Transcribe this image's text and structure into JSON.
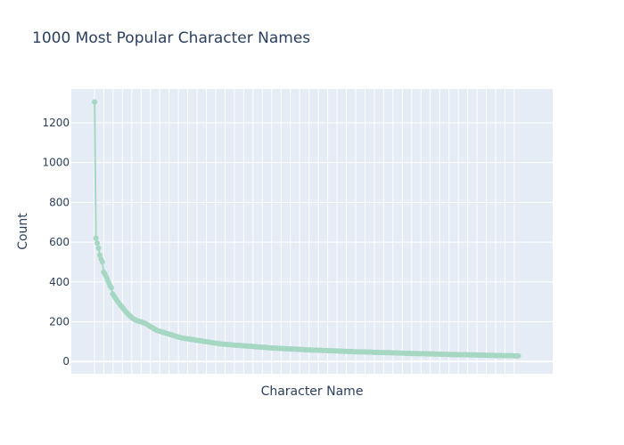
{
  "chart_data": {
    "type": "line",
    "title": "1000 Most Popular Character Names",
    "xlabel": "Character Name",
    "ylabel": "Count",
    "x_tick_labels_shown": false,
    "yticks": [
      0,
      200,
      400,
      600,
      800,
      1000,
      1200
    ],
    "ylim": [
      -62,
      1370
    ],
    "grid": true,
    "legend": "none",
    "series": [
      {
        "color": "#a6d7c2",
        "mode": "lines+markers",
        "values": [
          1305,
          620,
          595,
          570,
          535,
          515,
          500,
          450,
          440,
          425,
          410,
          395,
          380,
          370,
          340,
          330,
          320,
          310,
          300,
          292,
          284,
          276,
          268,
          260,
          252,
          245,
          238,
          232,
          226,
          220,
          215,
          211,
          208,
          205,
          203,
          201,
          199,
          197,
          195,
          192,
          189,
          185,
          181,
          177,
          173,
          169,
          165,
          161,
          158,
          155,
          153,
          151,
          149,
          147,
          145,
          143,
          141,
          139,
          137,
          135,
          133,
          131,
          129,
          127,
          125,
          123,
          121,
          119,
          118,
          117,
          116,
          115,
          114,
          113,
          112,
          111,
          110,
          109,
          108,
          107,
          106,
          105,
          104,
          103,
          102,
          101,
          100,
          99,
          98,
          97,
          96,
          95,
          94,
          93,
          92,
          91,
          90,
          89,
          88,
          87,
          87,
          86,
          86,
          85,
          85,
          84,
          84,
          83,
          83,
          82,
          82,
          81,
          81,
          80,
          80,
          79,
          79,
          78,
          78,
          77,
          77,
          76,
          76,
          75,
          75,
          74,
          74,
          73,
          73,
          72,
          72,
          71,
          71,
          70,
          70,
          69,
          69,
          68,
          68,
          67,
          67,
          67,
          66,
          66,
          66,
          65,
          65,
          65,
          64,
          64,
          64,
          63,
          63,
          63,
          62,
          62,
          62,
          61,
          61,
          61,
          60,
          60,
          60,
          59,
          59,
          59,
          58,
          58,
          58,
          57,
          57,
          57,
          57,
          56,
          56,
          56,
          56,
          55,
          55,
          55,
          55,
          54,
          54,
          54,
          54,
          53,
          53,
          53,
          53,
          52,
          52,
          52,
          52,
          51,
          51,
          51,
          51,
          50,
          50,
          50,
          50,
          49,
          49,
          49,
          49,
          49,
          48,
          48,
          48,
          48,
          48,
          47,
          47,
          47,
          47,
          47,
          46,
          46,
          46,
          46,
          46,
          45,
          45,
          45,
          45,
          45,
          44,
          44,
          44,
          44,
          44,
          43,
          43,
          43,
          43,
          43,
          42,
          42,
          42,
          42,
          42,
          41,
          41,
          41,
          41,
          41,
          40,
          40,
          40,
          40,
          40,
          40,
          39,
          39,
          39,
          39,
          39,
          39,
          38,
          38,
          38,
          38,
          38,
          38,
          37,
          37,
          37,
          37,
          37,
          37,
          36,
          36,
          36,
          36,
          36,
          36,
          35,
          35,
          35,
          35,
          35,
          35,
          35,
          34,
          34,
          34,
          34,
          34,
          34,
          34,
          33,
          33,
          33,
          33,
          33,
          33,
          33,
          32,
          32,
          32,
          32,
          32,
          32,
          32,
          31,
          31,
          31,
          31,
          31,
          31,
          31,
          30,
          30,
          30,
          30,
          30,
          30,
          30,
          29,
          29,
          29,
          29,
          29,
          29,
          29,
          28,
          28,
          28,
          28,
          28
        ]
      }
    ]
  }
}
